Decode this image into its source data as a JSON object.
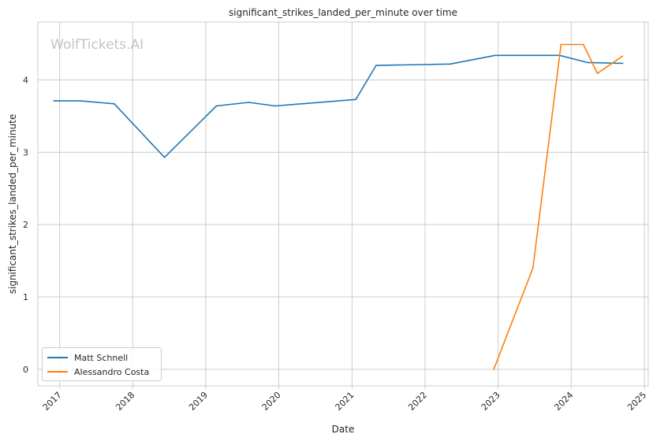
{
  "watermark": "WolfTickets.AI",
  "chart_data": {
    "type": "line",
    "title": "significant_strikes_landed_per_minute over time",
    "xlabel": "Date",
    "ylabel": "significant_strikes_landed_per_minute",
    "x_ticks": [
      "2017",
      "2018",
      "2019",
      "2020",
      "2021",
      "2022",
      "2023",
      "2024",
      "2025"
    ],
    "y_ticks": [
      "0",
      "1",
      "2",
      "3",
      "4"
    ],
    "xlim": [
      "2016-09-14",
      "2025-01-20"
    ],
    "ylim": [
      -0.23,
      4.8
    ],
    "grid": true,
    "legend_position": "lower-left",
    "series": [
      {
        "name": "Matt Schnell",
        "color": "#1f77b4",
        "points": [
          [
            "2016-12-03",
            3.71
          ],
          [
            "2017-04-15",
            3.71
          ],
          [
            "2017-10-01",
            3.67
          ],
          [
            "2018-06-09",
            2.93
          ],
          [
            "2019-02-23",
            3.64
          ],
          [
            "2019-08-03",
            3.69
          ],
          [
            "2019-12-14",
            3.64
          ],
          [
            "2021-01-20",
            3.73
          ],
          [
            "2021-05-01",
            4.2
          ],
          [
            "2022-05-07",
            4.22
          ],
          [
            "2022-12-17",
            4.34
          ],
          [
            "2023-11-04",
            4.34
          ],
          [
            "2024-03-23",
            4.24
          ],
          [
            "2024-09-14",
            4.23
          ]
        ]
      },
      {
        "name": "Alessandro Costa",
        "color": "#ff7f0e",
        "points": [
          [
            "2022-12-10",
            0.0
          ],
          [
            "2023-06-24",
            1.4
          ],
          [
            "2023-11-11",
            4.49
          ],
          [
            "2024-03-02",
            4.49
          ],
          [
            "2024-05-11",
            4.09
          ],
          [
            "2024-09-14",
            4.33
          ]
        ]
      }
    ]
  }
}
